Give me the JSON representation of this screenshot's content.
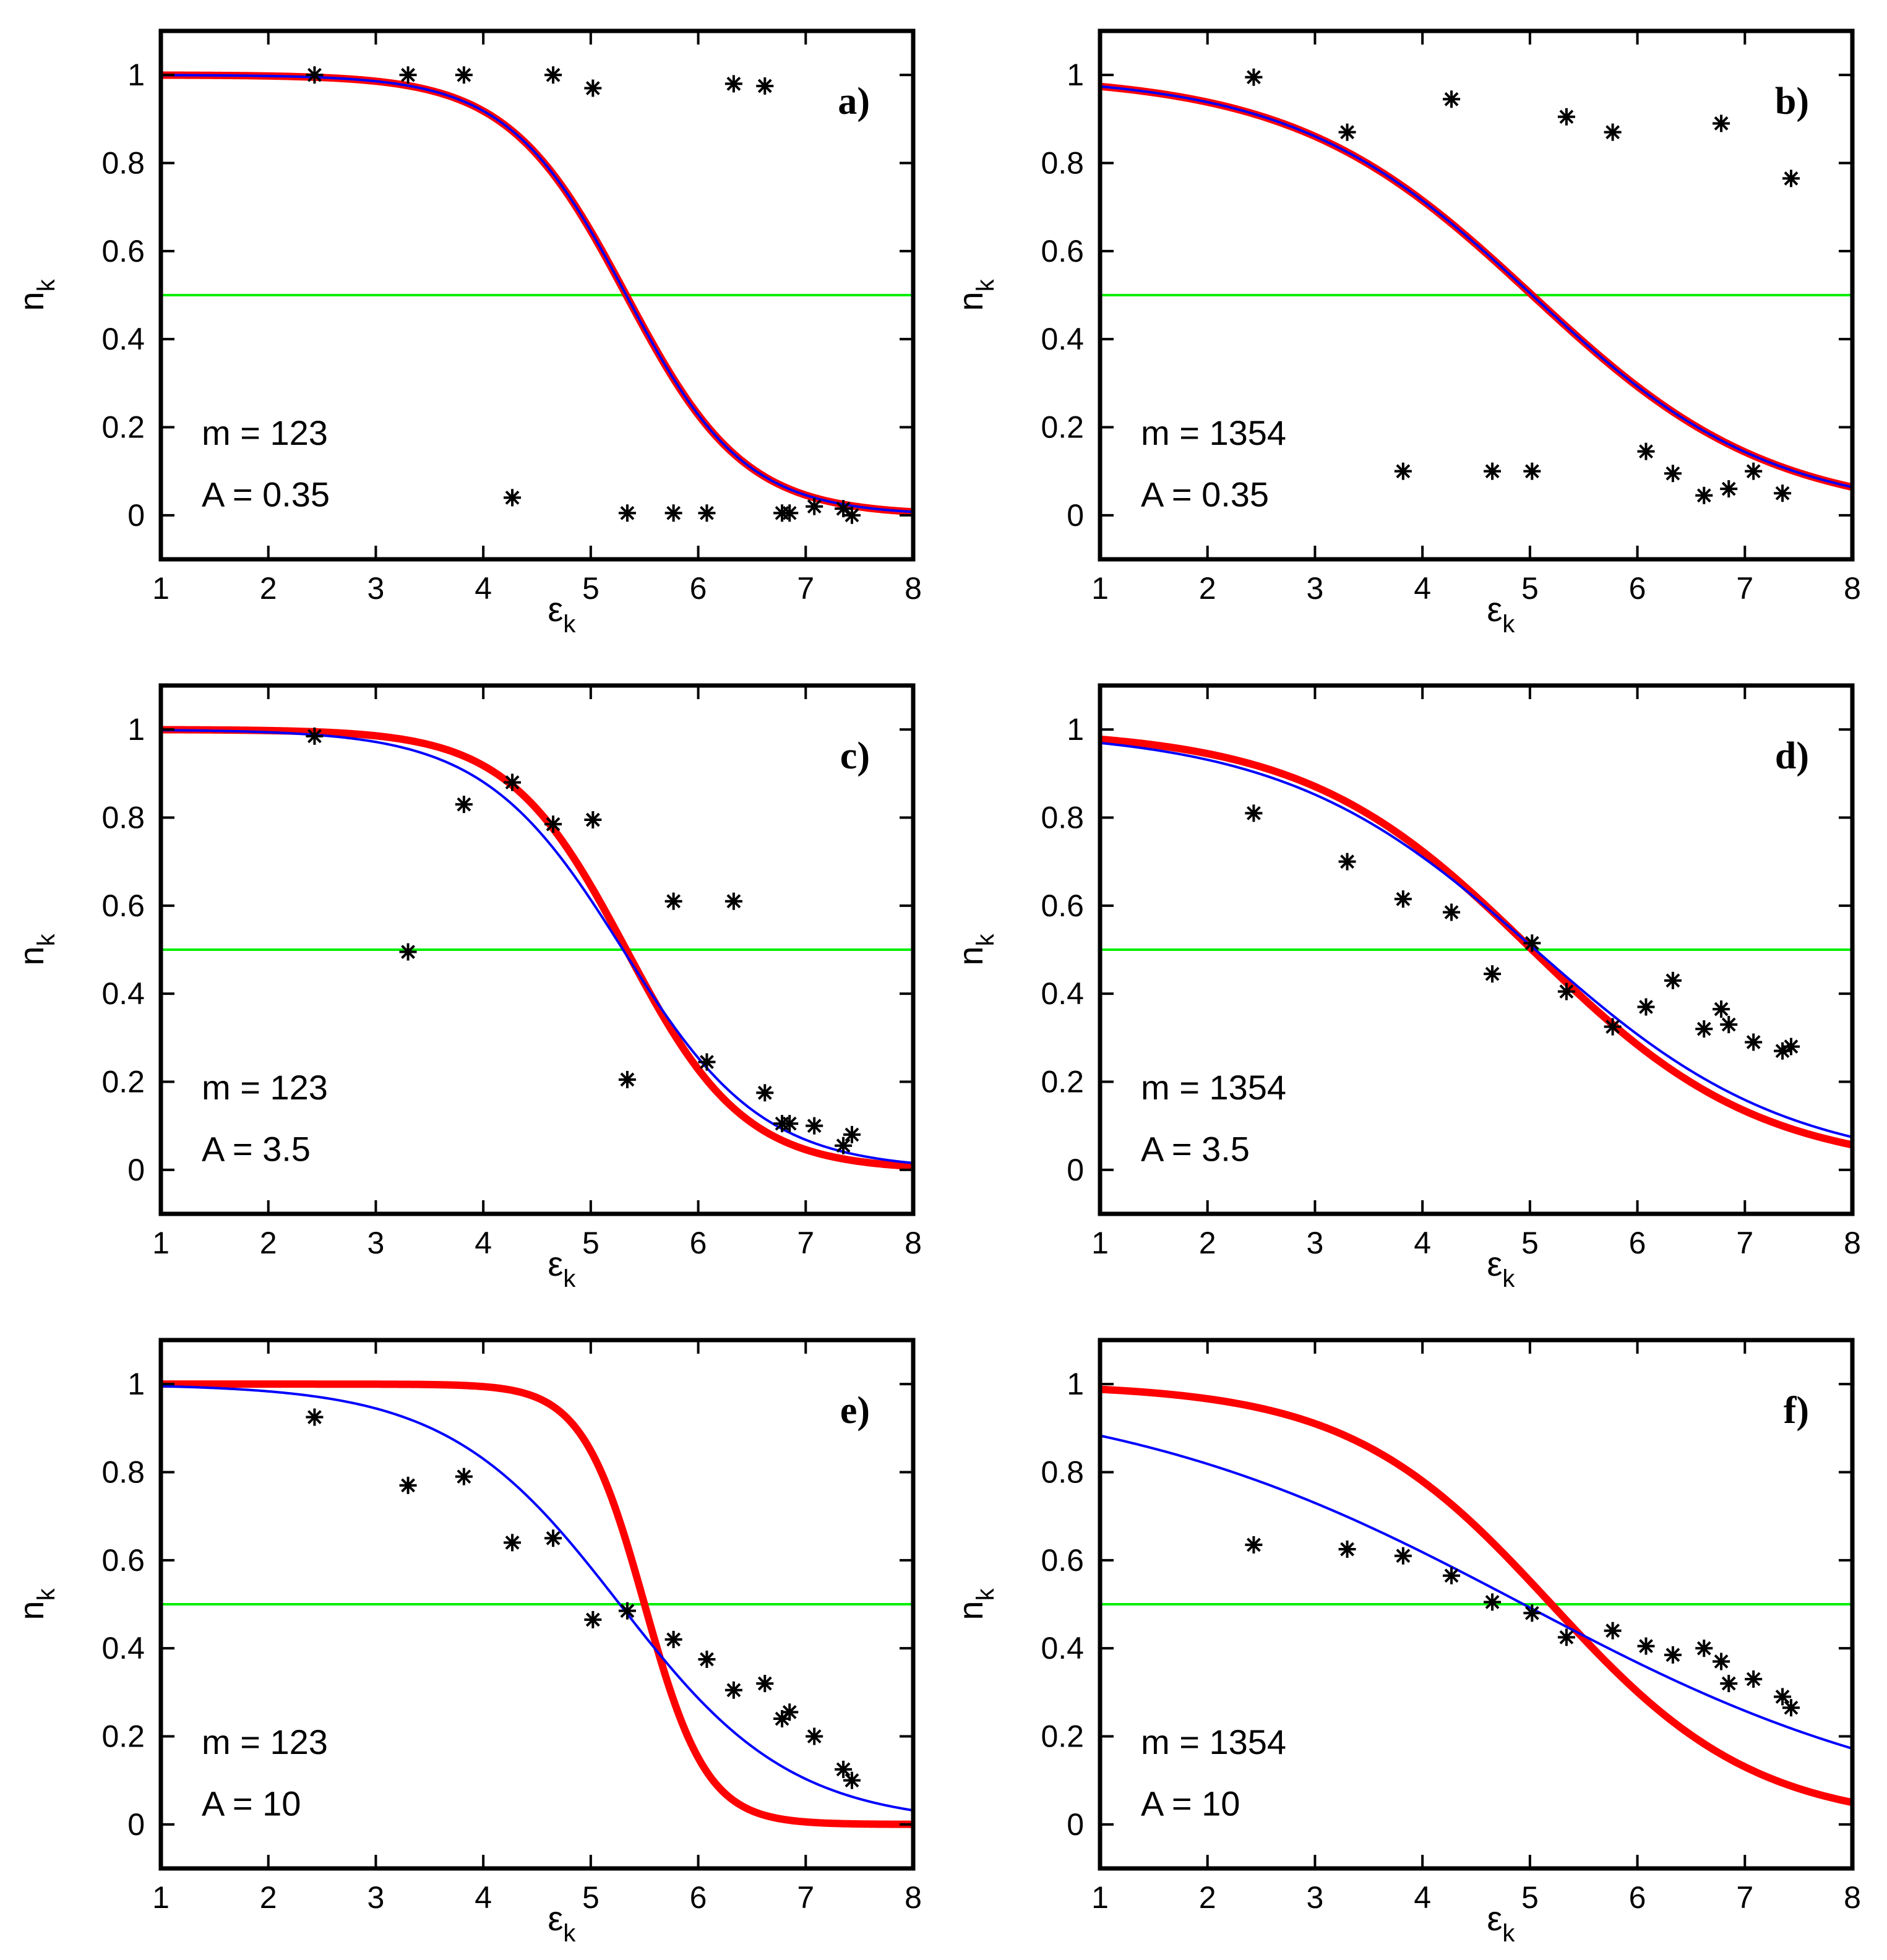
{
  "figure": {
    "colors": {
      "red": "#ff0000",
      "blue": "#0000ff",
      "green": "#00ee00",
      "marker": "#000000",
      "frame": "#000000"
    },
    "axis_text": {
      "ylabel_main": "n",
      "ylabel_sub": "k",
      "xlabel_main": "ε",
      "xlabel_sub": "k"
    }
  },
  "chart_data": [
    {
      "type": "scatter",
      "panel": "a)",
      "m_label": "m = 123",
      "a_label": "A = 0.35",
      "xlim": [
        1,
        8
      ],
      "ylim": [
        -0.1,
        1.1
      ],
      "xticks": [
        "1",
        "2",
        "3",
        "4",
        "5",
        "6",
        "7",
        "8"
      ],
      "yticks": [
        {
          "v": 0,
          "t": "0"
        },
        {
          "v": 0.2,
          "t": "0.2"
        },
        {
          "v": 0.4,
          "t": "0.4"
        },
        {
          "v": 0.6,
          "t": "0.6"
        },
        {
          "v": 0.8,
          "t": "0.8"
        },
        {
          "v": 1,
          "t": "1"
        }
      ],
      "xlabel": "εk",
      "ylabel": "nk",
      "red_curve": {
        "mu": 5.33,
        "T": 0.55
      },
      "blue_curve": {
        "mu": 5.33,
        "T": 0.55
      },
      "reference_line": 0.5,
      "points": [
        [
          2.43,
          1.0
        ],
        [
          3.3,
          1.0
        ],
        [
          3.82,
          1.0
        ],
        [
          4.27,
          0.04
        ],
        [
          4.65,
          1.0
        ],
        [
          5.02,
          0.97
        ],
        [
          5.34,
          0.005
        ],
        [
          5.77,
          0.005
        ],
        [
          6.08,
          0.005
        ],
        [
          6.33,
          0.98
        ],
        [
          6.62,
          0.975
        ],
        [
          6.78,
          0.005
        ],
        [
          6.85,
          0.005
        ],
        [
          7.08,
          0.02
        ],
        [
          7.35,
          0.015
        ],
        [
          7.43,
          0.0
        ]
      ]
    },
    {
      "type": "scatter",
      "panel": "b)",
      "m_label": "m = 1354",
      "a_label": "A = 0.35",
      "xlim": [
        1,
        8
      ],
      "ylim": [
        -0.1,
        1.1
      ],
      "xticks": [
        "1",
        "2",
        "3",
        "4",
        "5",
        "6",
        "7",
        "8"
      ],
      "yticks": [
        {
          "v": 0,
          "t": "0"
        },
        {
          "v": 0.2,
          "t": "0.2"
        },
        {
          "v": 0.4,
          "t": "0.4"
        },
        {
          "v": 0.6,
          "t": "0.6"
        },
        {
          "v": 0.8,
          "t": "0.8"
        },
        {
          "v": 1,
          "t": "1"
        }
      ],
      "xlabel": "εk",
      "ylabel": "nk",
      "red_curve": {
        "mu": 5.02,
        "T": 1.11
      },
      "blue_curve": {
        "mu": 5.02,
        "T": 1.11
      },
      "reference_line": 0.5,
      "points": [
        [
          2.43,
          0.995
        ],
        [
          3.3,
          0.87
        ],
        [
          3.82,
          0.1
        ],
        [
          4.27,
          0.945
        ],
        [
          4.65,
          0.1
        ],
        [
          5.02,
          0.1
        ],
        [
          5.34,
          0.905
        ],
        [
          5.77,
          0.87
        ],
        [
          6.08,
          0.145
        ],
        [
          6.33,
          0.095
        ],
        [
          6.62,
          0.045
        ],
        [
          6.78,
          0.89
        ],
        [
          6.85,
          0.06
        ],
        [
          7.08,
          0.1
        ],
        [
          7.35,
          0.05
        ],
        [
          7.43,
          0.765
        ]
      ]
    },
    {
      "type": "scatter",
      "panel": "c)",
      "m_label": "m = 123",
      "a_label": "A = 3.5",
      "xlim": [
        1,
        8
      ],
      "ylim": [
        -0.1,
        1.1
      ],
      "xticks": [
        "1",
        "2",
        "3",
        "4",
        "5",
        "6",
        "7",
        "8"
      ],
      "yticks": [
        {
          "v": 0,
          "t": "0"
        },
        {
          "v": 0.2,
          "t": "0.2"
        },
        {
          "v": 0.4,
          "t": "0.4"
        },
        {
          "v": 0.6,
          "t": "0.6"
        },
        {
          "v": 0.8,
          "t": "0.8"
        },
        {
          "v": 1,
          "t": "1"
        }
      ],
      "xlabel": "εk",
      "ylabel": "nk",
      "red_curve": {
        "mu": 5.33,
        "T": 0.55
      },
      "blue_curve": {
        "mu": 5.3,
        "T": 0.65
      },
      "reference_line": 0.5,
      "points": [
        [
          2.43,
          0.985
        ],
        [
          3.3,
          0.495
        ],
        [
          3.82,
          0.83
        ],
        [
          4.27,
          0.88
        ],
        [
          4.65,
          0.785
        ],
        [
          5.02,
          0.795
        ],
        [
          5.34,
          0.205
        ],
        [
          5.77,
          0.61
        ],
        [
          6.08,
          0.245
        ],
        [
          6.33,
          0.61
        ],
        [
          6.62,
          0.175
        ],
        [
          6.78,
          0.105
        ],
        [
          6.85,
          0.105
        ],
        [
          7.08,
          0.1
        ],
        [
          7.35,
          0.055
        ],
        [
          7.43,
          0.08
        ]
      ]
    },
    {
      "type": "scatter",
      "panel": "d)",
      "m_label": "m = 1354",
      "a_label": "A = 3.5",
      "xlim": [
        1,
        8
      ],
      "ylim": [
        -0.1,
        1.1
      ],
      "xticks": [
        "1",
        "2",
        "3",
        "4",
        "5",
        "6",
        "7",
        "8"
      ],
      "yticks": [
        {
          "v": 0,
          "t": "0"
        },
        {
          "v": 0.2,
          "t": "0.2"
        },
        {
          "v": 0.4,
          "t": "0.4"
        },
        {
          "v": 0.6,
          "t": "0.6"
        },
        {
          "v": 0.8,
          "t": "0.8"
        },
        {
          "v": 1,
          "t": "1"
        }
      ],
      "xlabel": "εk",
      "ylabel": "nk",
      "red_curve": {
        "mu": 5.02,
        "T": 1.06
      },
      "blue_curve": {
        "mu": 5.05,
        "T": 1.17
      },
      "reference_line": 0.5,
      "points": [
        [
          2.43,
          0.81
        ],
        [
          3.3,
          0.7
        ],
        [
          3.82,
          0.615
        ],
        [
          4.27,
          0.585
        ],
        [
          4.65,
          0.445
        ],
        [
          5.02,
          0.515
        ],
        [
          5.34,
          0.405
        ],
        [
          5.77,
          0.325
        ],
        [
          6.08,
          0.37
        ],
        [
          6.33,
          0.43
        ],
        [
          6.62,
          0.32
        ],
        [
          6.78,
          0.365
        ],
        [
          6.85,
          0.33
        ],
        [
          7.08,
          0.29
        ],
        [
          7.35,
          0.27
        ],
        [
          7.43,
          0.28
        ]
      ]
    },
    {
      "type": "scatter",
      "panel": "e)",
      "m_label": "m = 123",
      "a_label": "A = 10",
      "xlim": [
        1,
        8
      ],
      "ylim": [
        -0.1,
        1.1
      ],
      "xticks": [
        "1",
        "2",
        "3",
        "4",
        "5",
        "6",
        "7",
        "8"
      ],
      "yticks": [
        {
          "v": 0,
          "t": "0"
        },
        {
          "v": 0.2,
          "t": "0.2"
        },
        {
          "v": 0.4,
          "t": "0.4"
        },
        {
          "v": 0.6,
          "t": "0.6"
        },
        {
          "v": 0.8,
          "t": "0.8"
        },
        {
          "v": 1,
          "t": "1"
        }
      ],
      "xlabel": "εk",
      "ylabel": "nk",
      "red_curve": {
        "mu": 5.5,
        "T": 0.29
      },
      "blue_curve": {
        "mu": 5.27,
        "T": 0.8
      },
      "reference_line": 0.5,
      "points": [
        [
          2.43,
          0.925
        ],
        [
          3.3,
          0.77
        ],
        [
          3.82,
          0.79
        ],
        [
          4.27,
          0.64
        ],
        [
          4.65,
          0.65
        ],
        [
          5.02,
          0.465
        ],
        [
          5.34,
          0.485
        ],
        [
          5.77,
          0.42
        ],
        [
          6.08,
          0.375
        ],
        [
          6.33,
          0.305
        ],
        [
          6.62,
          0.32
        ],
        [
          6.78,
          0.24
        ],
        [
          6.85,
          0.255
        ],
        [
          7.08,
          0.2
        ],
        [
          7.35,
          0.125
        ],
        [
          7.43,
          0.1
        ]
      ]
    },
    {
      "type": "scatter",
      "panel": "f)",
      "m_label": "m = 1354",
      "a_label": "A = 10",
      "xlim": [
        1,
        8
      ],
      "ylim": [
        -0.1,
        1.1
      ],
      "xticks": [
        "1",
        "2",
        "3",
        "4",
        "5",
        "6",
        "7",
        "8"
      ],
      "yticks": [
        {
          "v": 0,
          "t": "0"
        },
        {
          "v": 0.2,
          "t": "0.2"
        },
        {
          "v": 0.4,
          "t": "0.4"
        },
        {
          "v": 0.6,
          "t": "0.6"
        },
        {
          "v": 0.8,
          "t": "0.8"
        },
        {
          "v": 1,
          "t": "1"
        }
      ],
      "xlabel": "εk",
      "ylabel": "nk",
      "red_curve": {
        "mu": 5.2,
        "T": 0.95
      },
      "blue_curve": {
        "mu": 4.94,
        "T": 1.95
      },
      "reference_line": 0.5,
      "points": [
        [
          2.43,
          0.635
        ],
        [
          3.3,
          0.625
        ],
        [
          3.82,
          0.61
        ],
        [
          4.27,
          0.565
        ],
        [
          4.65,
          0.505
        ],
        [
          5.02,
          0.48
        ],
        [
          5.34,
          0.425
        ],
        [
          5.77,
          0.44
        ],
        [
          6.08,
          0.405
        ],
        [
          6.33,
          0.385
        ],
        [
          6.62,
          0.4
        ],
        [
          6.78,
          0.37
        ],
        [
          6.85,
          0.32
        ],
        [
          7.08,
          0.33
        ],
        [
          7.35,
          0.29
        ],
        [
          7.43,
          0.265
        ]
      ]
    }
  ]
}
